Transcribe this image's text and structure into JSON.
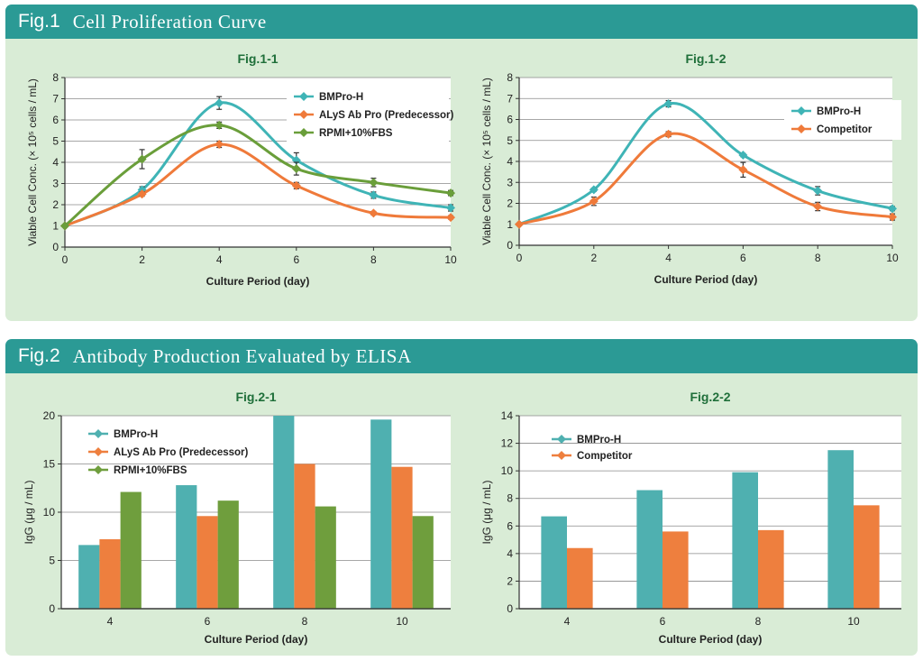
{
  "fig1": {
    "label": "Fig.1",
    "title": "Cell Proliferation Curve"
  },
  "fig2": {
    "label": "Fig.2",
    "title": "Antibody Production Evaluated by ELISA"
  },
  "colors": {
    "teal": "#3fb4b6",
    "orange": "#ef7a3a",
    "green": "#6a9e3a",
    "bar_teal": "#4fb0b0",
    "bar_orange": "#ee7f3e",
    "bar_green": "#6f9e3d",
    "header": "#2b9a95",
    "panel": "#d9ecd6"
  },
  "chart_data": [
    {
      "id": "c11",
      "type": "line",
      "title": "Fig.1-1",
      "xlabel": "Culture Period (day)",
      "ylabel": "Viable Cell Conc. (× 10⁵ cells / mL)",
      "x": [
        0,
        2,
        4,
        6,
        8,
        10
      ],
      "xlim": [
        0,
        10
      ],
      "ylim": [
        0,
        8
      ],
      "xticks": [
        "0",
        "2",
        "4",
        "6",
        "8",
        "10"
      ],
      "yticks": [
        "0",
        "1",
        "2",
        "3",
        "4",
        "5",
        "6",
        "7",
        "8"
      ],
      "legend_position": "top-right",
      "series": [
        {
          "name": "BMPro-H",
          "color": "#3fb4b6",
          "values": [
            1.0,
            2.7,
            6.8,
            4.1,
            2.45,
            1.85
          ],
          "err": [
            0.05,
            0.15,
            0.3,
            0.35,
            0.15,
            0.15
          ]
        },
        {
          "name": "ALyS Ab Pro (Predecessor)",
          "color": "#ef7a3a",
          "values": [
            1.0,
            2.5,
            4.85,
            2.9,
            1.6,
            1.4
          ],
          "err": [
            0.05,
            0.1,
            0.15,
            0.15,
            0.08,
            0.08
          ]
        },
        {
          "name": "RPMI+10%FBS",
          "color": "#6a9e3a",
          "values": [
            1.0,
            4.15,
            5.75,
            3.7,
            3.05,
            2.55
          ],
          "err": [
            0.05,
            0.45,
            0.15,
            0.3,
            0.2,
            0.12
          ]
        }
      ]
    },
    {
      "id": "c12",
      "type": "line",
      "title": "Fig.1-2",
      "xlabel": "Culture Period (day)",
      "ylabel": "Viable Cell Conc. (× 10⁵ cells / mL)",
      "x": [
        0,
        2,
        4,
        6,
        8,
        10
      ],
      "xlim": [
        0,
        10
      ],
      "ylim": [
        0,
        8
      ],
      "xticks": [
        "0",
        "2",
        "4",
        "6",
        "8",
        "10"
      ],
      "yticks": [
        "0",
        "1",
        "2",
        "3",
        "4",
        "5",
        "6",
        "7",
        "8"
      ],
      "legend_position": "top-right",
      "series": [
        {
          "name": "BMPro-H",
          "color": "#3fb4b6",
          "values": [
            1.0,
            2.65,
            6.75,
            4.3,
            2.6,
            1.75
          ],
          "err": [
            0.05,
            0.08,
            0.15,
            0.08,
            0.2,
            0.1
          ]
        },
        {
          "name": "Competitor",
          "color": "#ef7a3a",
          "values": [
            1.0,
            2.1,
            5.3,
            3.6,
            1.85,
            1.35
          ],
          "err": [
            0.05,
            0.2,
            0.12,
            0.35,
            0.2,
            0.15
          ]
        }
      ]
    },
    {
      "id": "c21",
      "type": "bar",
      "title": "Fig.2-1",
      "xlabel": "Culture Period (day)",
      "ylabel": "IgG (μg / mL)",
      "categories": [
        "4",
        "6",
        "8",
        "10"
      ],
      "ylim": [
        0,
        20
      ],
      "yticks": [
        "0",
        "5",
        "10",
        "15",
        "20"
      ],
      "legend_position": "top-left",
      "series": [
        {
          "name": "BMPro-H",
          "color": "#4fb0b0",
          "values": [
            6.6,
            12.8,
            20.0,
            19.6
          ]
        },
        {
          "name": "ALyS Ab Pro (Predecessor)",
          "color": "#ee7f3e",
          "values": [
            7.2,
            9.6,
            15.0,
            14.7
          ]
        },
        {
          "name": "RPMI+10%FBS",
          "color": "#6f9e3d",
          "values": [
            12.1,
            11.2,
            10.6,
            9.6
          ]
        }
      ]
    },
    {
      "id": "c22",
      "type": "bar",
      "title": "Fig.2-2",
      "xlabel": "Culture Period (day)",
      "ylabel": "IgG (μg / mL)",
      "categories": [
        "4",
        "6",
        "8",
        "10"
      ],
      "ylim": [
        0,
        14
      ],
      "yticks": [
        "0",
        "2",
        "4",
        "6",
        "8",
        "10",
        "12",
        "14"
      ],
      "legend_position": "top-left",
      "series": [
        {
          "name": "BMPro-H",
          "color": "#4fb0b0",
          "values": [
            6.7,
            8.6,
            9.9,
            11.5
          ]
        },
        {
          "name": "Competitor",
          "color": "#ee7f3e",
          "values": [
            4.4,
            5.6,
            5.7,
            7.5
          ]
        }
      ]
    }
  ]
}
